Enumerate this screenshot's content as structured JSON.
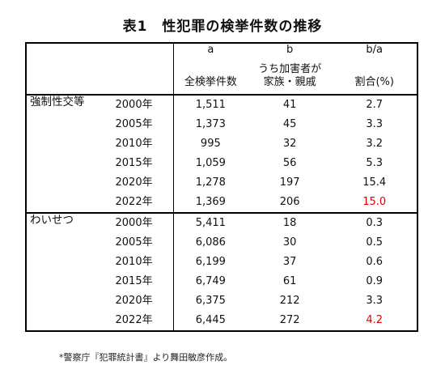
{
  "title": "表1　性犯罪の検挙件数の推移",
  "header": {
    "col_a_letter": "a",
    "col_b_letter": "b",
    "col_r_letter": "b/a",
    "col_a_label": "全検挙件数",
    "col_b_label_line1": "うち加害者が",
    "col_b_label_line2": "家族・親戚",
    "col_r_label": "割合(%)"
  },
  "groups": [
    {
      "category": "強制性交等",
      "rows": [
        {
          "year": "2000年",
          "total": "1,511",
          "family": "41",
          "ratio": "2.7"
        },
        {
          "year": "2005年",
          "total": "1,373",
          "family": "45",
          "ratio": "3.3"
        },
        {
          "year": "2010年",
          "total": "995",
          "family": "32",
          "ratio": "3.2"
        },
        {
          "year": "2015年",
          "total": "1,059",
          "family": "56",
          "ratio": "5.3"
        },
        {
          "year": "2020年",
          "total": "1,278",
          "family": "197",
          "ratio": "15.4"
        },
        {
          "year": "2022年",
          "total": "1,369",
          "family": "206",
          "ratio": "15.0"
        }
      ]
    },
    {
      "category": "わいせつ",
      "rows": [
        {
          "year": "2000年",
          "total": "5,411",
          "family": "18",
          "ratio": "0.3"
        },
        {
          "year": "2005年",
          "total": "6,086",
          "family": "30",
          "ratio": "0.5"
        },
        {
          "year": "2010年",
          "total": "6,199",
          "family": "37",
          "ratio": "0.6"
        },
        {
          "year": "2015年",
          "total": "6,749",
          "family": "61",
          "ratio": "0.9"
        },
        {
          "year": "2020年",
          "total": "6,375",
          "family": "212",
          "ratio": "3.3"
        },
        {
          "year": "2022年",
          "total": "6,445",
          "family": "272",
          "ratio": "4.2"
        }
      ]
    }
  ],
  "highlight_color": "#e00000",
  "footnote": "*警察庁『犯罪統計書』より舞田敏彦作成。"
}
